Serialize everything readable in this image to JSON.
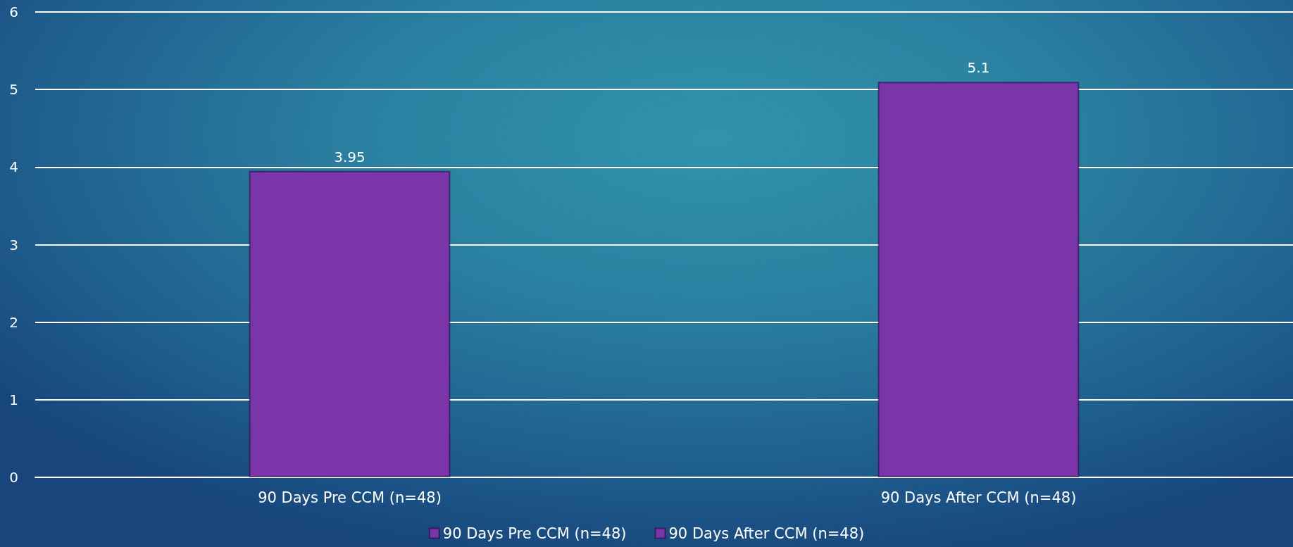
{
  "chart_data": {
    "type": "bar",
    "categories": [
      "90 Days Pre CCM (n=48)",
      "90 Days After CCM (n=48)"
    ],
    "series": [
      {
        "name": "90 Days Pre CCM (n=48)",
        "color": "#7a35a8",
        "values": [
          3.95,
          null
        ]
      },
      {
        "name": "90 Days After CCM (n=48)",
        "color": "#7a35a8",
        "values": [
          null,
          5.1
        ]
      }
    ],
    "ylim": [
      0,
      6
    ],
    "yticks": [
      0,
      1,
      2,
      3,
      4,
      5,
      6
    ],
    "grid": "y",
    "legend": "bottom",
    "data_labels": true
  }
}
